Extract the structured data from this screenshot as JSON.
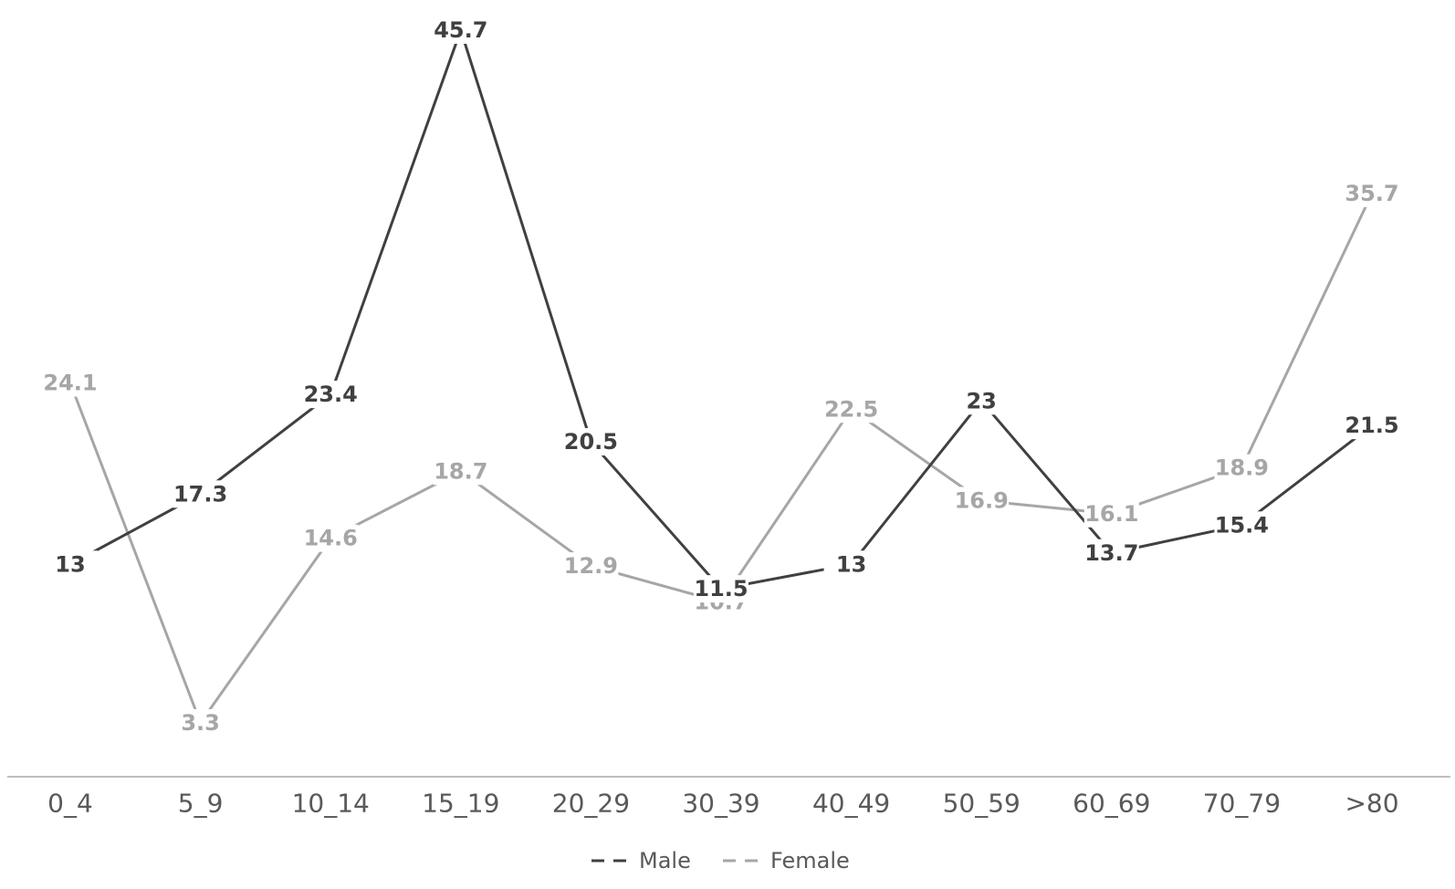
{
  "chart_data": {
    "type": "line",
    "title": "",
    "xlabel": "",
    "ylabel": "",
    "categories": [
      "0_4",
      "5_9",
      "10_14",
      "15_19",
      "20_29",
      "30_39",
      "40_49",
      "50_59",
      "60_69",
      "70_79",
      ">80"
    ],
    "series": [
      {
        "name": "Male",
        "color": "#404040",
        "values": [
          13,
          17.3,
          23.4,
          45.7,
          20.5,
          11.5,
          13,
          23,
          13.7,
          15.4,
          21.5
        ]
      },
      {
        "name": "Female",
        "color": "#a6a6a6",
        "values": [
          24.1,
          3.3,
          14.6,
          18.7,
          12.9,
          10.7,
          22.5,
          16.9,
          16.1,
          18.9,
          35.7
        ]
      }
    ],
    "ylim": [
      0,
      47
    ],
    "grid": false,
    "data_labels": true,
    "legend_position": "bottom"
  }
}
